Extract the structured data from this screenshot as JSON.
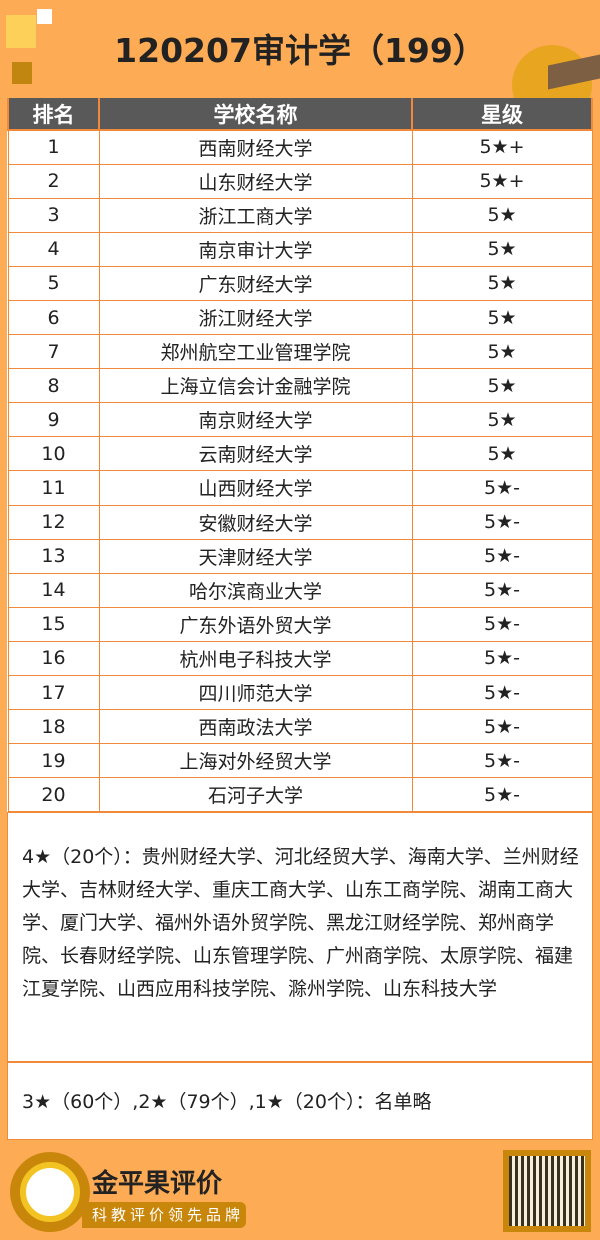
{
  "title": "120207审计学（199）",
  "table": {
    "headers": [
      "排名",
      "学校名称",
      "星级"
    ],
    "rows": [
      [
        "1",
        "西南财经大学",
        "5★+"
      ],
      [
        "2",
        "山东财经大学",
        "5★+"
      ],
      [
        "3",
        "浙江工商大学",
        "5★"
      ],
      [
        "4",
        "南京审计大学",
        "5★"
      ],
      [
        "5",
        "广东财经大学",
        "5★"
      ],
      [
        "6",
        "浙江财经大学",
        "5★"
      ],
      [
        "7",
        "郑州航空工业管理学院",
        "5★"
      ],
      [
        "8",
        "上海立信会计金融学院",
        "5★"
      ],
      [
        "9",
        "南京财经大学",
        "5★"
      ],
      [
        "10",
        "云南财经大学",
        "5★"
      ],
      [
        "11",
        "山西财经大学",
        "5★-"
      ],
      [
        "12",
        "安徽财经大学",
        "5★-"
      ],
      [
        "13",
        "天津财经大学",
        "5★-"
      ],
      [
        "14",
        "哈尔滨商业大学",
        "5★-"
      ],
      [
        "15",
        "广东外语外贸大学",
        "5★-"
      ],
      [
        "16",
        "杭州电子科技大学",
        "5★-"
      ],
      [
        "17",
        "四川师范大学",
        "5★-"
      ],
      [
        "18",
        "西南政法大学",
        "5★-"
      ],
      [
        "19",
        "上海对外经贸大学",
        "5★-"
      ],
      [
        "20",
        "石河子大学",
        "5★-"
      ]
    ]
  },
  "notes": {
    "four_star": "4★（20个）：贵州财经大学、河北经贸大学、海南大学、兰州财经大学、吉林财经大学、重庆工商大学、山东工商学院、湖南工商大学、厦门大学、福州外语外贸学院、黑龙江财经学院、郑州商学院、长春财经学院、山东管理学院、广州商学院、太原学院、福建江夏学院、山西应用科技学院、滁州学院、山东科技大学",
    "others": "3★（60个）,2★（79个）,1★（20个）：名单略"
  },
  "footer": {
    "brand": "金平果评价",
    "slogan": "科教评价领先品牌"
  },
  "colors": {
    "background": "#fdab55",
    "header": "#595959",
    "border": "#f08a3a"
  }
}
